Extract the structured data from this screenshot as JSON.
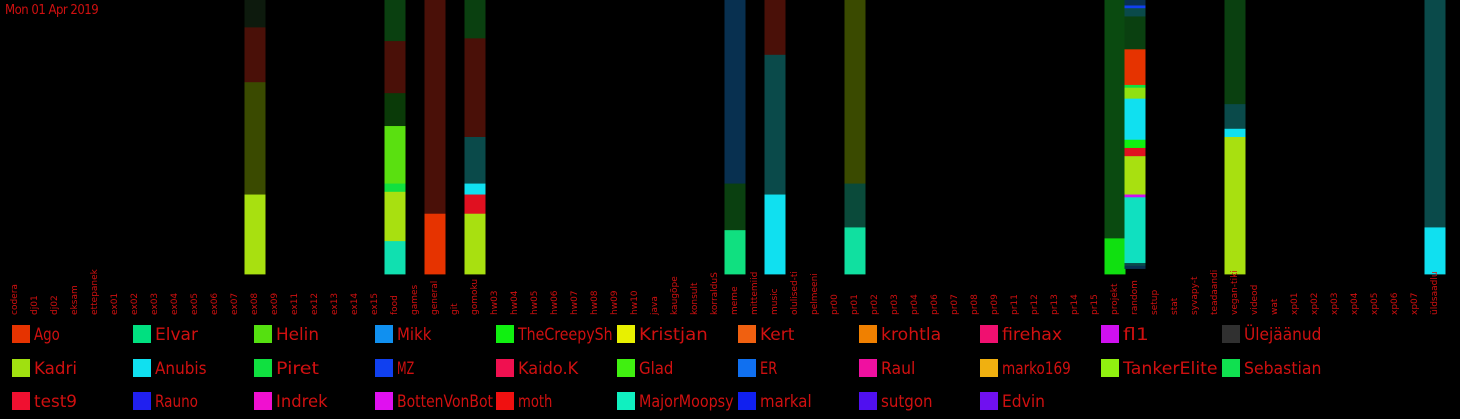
{
  "header": {
    "date": "Mon 01 Apr 2019"
  },
  "chart_data": {
    "type": "bar",
    "stacked": true,
    "normalized": true,
    "categories": [
      "codera",
      "dj01",
      "dj02",
      "eksam",
      "ettepanek",
      "ex01",
      "ex02",
      "ex03",
      "ex04",
      "ex05",
      "ex06",
      "ex07",
      "ex08",
      "ex09",
      "ex11",
      "ex12",
      "ex13",
      "ex14",
      "ex15",
      "food",
      "games",
      "general",
      "git",
      "gomoku",
      "hw03",
      "hw04",
      "hw05",
      "hw06",
      "hw07",
      "hw08",
      "hw09",
      "hw10",
      "java",
      "kaugõpe",
      "konsult",
      "korralduS",
      "meme",
      "mittemiid",
      "music",
      "olulised-ti",
      "pelmeeni",
      "pr00",
      "pr01",
      "pr02",
      "pr03",
      "pr04",
      "pr06",
      "pr07",
      "pr08",
      "pr09",
      "pr11",
      "pr12",
      "pr13",
      "pr14",
      "pr15",
      "projekt",
      "random",
      "setup",
      "stat",
      "syvapy-t",
      "teadaandi",
      "vegan-tiki",
      "videod",
      "wat",
      "xp01",
      "xp02",
      "xp03",
      "xp04",
      "xp05",
      "xp06",
      "xp07",
      "üldsaadlu"
    ],
    "series": [
      {
        "name": "Ago",
        "color": "#e63300"
      },
      {
        "name": "Elvar",
        "color": "#00e080"
      },
      {
        "name": "Helin",
        "color": "#55e010"
      },
      {
        "name": "Mikk",
        "color": "#1090f0"
      },
      {
        "name": "TheCreepySh",
        "color": "#10f010"
      },
      {
        "name": "Kristjan",
        "color": "#e8f000"
      },
      {
        "name": "Kert",
        "color": "#f06010"
      },
      {
        "name": "krohtla",
        "color": "#f08000"
      },
      {
        "name": "firehax",
        "color": "#f01070"
      },
      {
        "name": "fl1",
        "color": "#d010f0"
      },
      {
        "name": "Ülejäänud",
        "color": "#303030"
      },
      {
        "name": "Kadri",
        "color": "#a0e010"
      },
      {
        "name": "Anubis",
        "color": "#10e0f0"
      },
      {
        "name": "Piret",
        "color": "#10e040"
      },
      {
        "name": "MZ",
        "color": "#1040f0"
      },
      {
        "name": "Kaido.K",
        "color": "#f01050"
      },
      {
        "name": "Glad",
        "color": "#40f010"
      },
      {
        "name": "ER",
        "color": "#1070f0"
      },
      {
        "name": "Raul",
        "color": "#f010a0"
      },
      {
        "name": "marko169",
        "color": "#f0b010"
      },
      {
        "name": "TankerElite",
        "color": "#90f010"
      },
      {
        "name": "Sebastian",
        "color": "#10e050"
      },
      {
        "name": "test9",
        "color": "#f01030"
      },
      {
        "name": "Rauno",
        "color": "#2020f0"
      },
      {
        "name": "Indrek",
        "color": "#f010d0"
      },
      {
        "name": "BottenVonBot",
        "color": "#e010f0"
      },
      {
        "name": "moth",
        "color": "#f01010"
      },
      {
        "name": "MajorMoopsy",
        "color": "#10f0c0"
      },
      {
        "name": "markal",
        "color": "#1020f0"
      },
      {
        "name": "sutgon",
        "color": "#5010f0"
      },
      {
        "name": "Edvin",
        "color": "#7010f0"
      }
    ],
    "stacks": {
      "ex08": [
        [
          "#0d1a0d",
          0.1
        ],
        [
          "#4a1008",
          0.2
        ],
        [
          "#3a4a00",
          0.41
        ],
        [
          "#a8e010",
          0.29
        ]
      ],
      "food": [
        [
          "#0a4010",
          0.15
        ],
        [
          "#4a1008",
          0.19
        ],
        [
          "#0a3a08",
          0.12
        ],
        [
          "#5ae010",
          0.21
        ],
        [
          "#10e040",
          0.03
        ],
        [
          "#a8e010",
          0.18
        ],
        [
          "#10e0b0",
          0.12
        ]
      ],
      "general": [
        [
          "#4a1008",
          0.78
        ],
        [
          "#e63300",
          0.22
        ]
      ],
      "gomoku": [
        [
          "#0a4010",
          0.14
        ],
        [
          "#4a1008",
          0.36
        ],
        [
          "#0a4a4a",
          0.17
        ],
        [
          "#10e0f0",
          0.04
        ],
        [
          "#e01020",
          0.07
        ],
        [
          "#a8e010",
          0.22
        ]
      ],
      "meme": [
        [
          "#083050",
          0.67
        ],
        [
          "#0a4010",
          0.17
        ],
        [
          "#10e080",
          0.16
        ]
      ],
      "music": [
        [
          "#4a1008",
          0.2
        ],
        [
          "#0a4a4a",
          0.51
        ],
        [
          "#10e0f0",
          0.29
        ]
      ],
      "pr01": [
        [
          "#3a4a00",
          0.67
        ],
        [
          "#0a4a3a",
          0.16
        ],
        [
          "#10e0a0",
          0.17
        ]
      ],
      "projekt": [
        [
          "#0a4a10",
          0.87
        ],
        [
          "#10e010",
          0.13
        ]
      ],
      "random": [
        [
          "#083050",
          0.02
        ],
        [
          "#1040f0",
          0.01
        ],
        [
          "#0a4a4a",
          0.03
        ],
        [
          "#0a4010",
          0.12
        ],
        [
          "#e63300",
          0.13
        ],
        [
          "#10e040",
          0.01
        ],
        [
          "#90e010",
          0.04
        ],
        [
          "#10e0f0",
          0.15
        ],
        [
          "#10f010",
          0.03
        ],
        [
          "#e01020",
          0.03
        ],
        [
          "#a8e010",
          0.14
        ],
        [
          "#d010f0",
          0.01
        ],
        [
          "#10e0c0",
          0.24
        ],
        [
          "#0a4a4a",
          0.01
        ],
        [
          "#083050",
          0.01
        ]
      ],
      "vegan-tiki": [
        [
          "#0a4010",
          0.38
        ],
        [
          "#0a4a4a",
          0.09
        ],
        [
          "#10e0f0",
          0.03
        ],
        [
          "#a8e010",
          0.5
        ]
      ],
      "üldsaadlu": [
        [
          "#0a4a4a",
          0.83
        ],
        [
          "#10e0f0",
          0.17
        ]
      ]
    }
  }
}
